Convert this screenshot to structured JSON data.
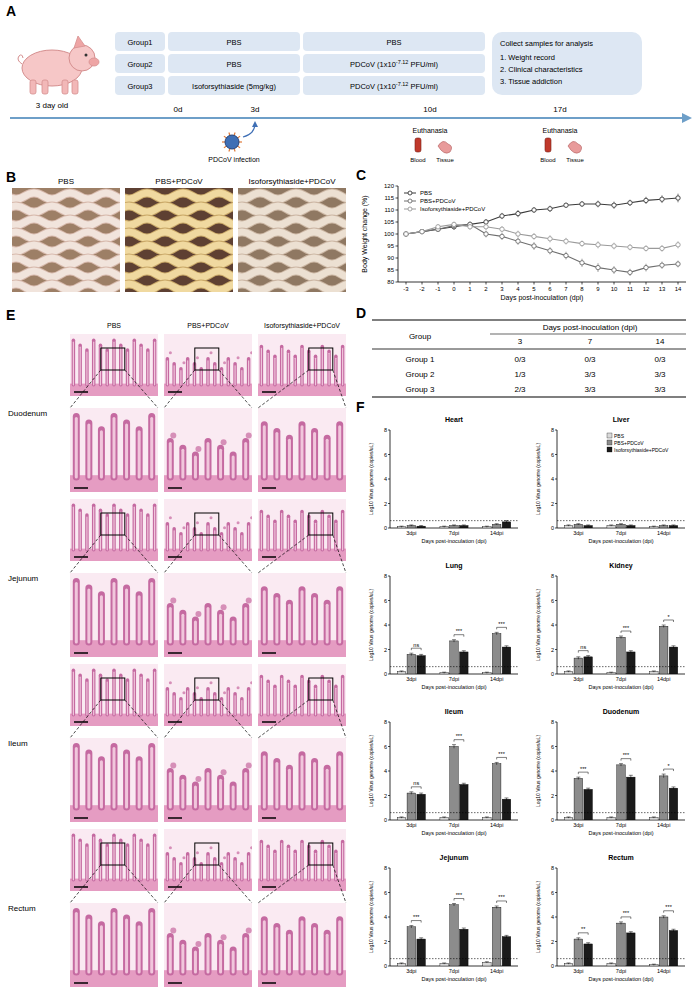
{
  "panel_labels": [
    "A",
    "B",
    "C",
    "D",
    "E",
    "F"
  ],
  "panel_a": {
    "subject": "3 day old",
    "groups": [
      {
        "group": "Group1",
        "pretreatment": "PBS",
        "challenge": {
          "base": "PBS"
        }
      },
      {
        "group": "Group2",
        "pretreatment": "PBS",
        "challenge": {
          "base": "PDCoV (1x10",
          "exponent": "-7.12",
          "unit": " PFU/ml)"
        }
      },
      {
        "group": "Group3",
        "pretreatment": "Isoforsythiaside (5mg/kg)",
        "challenge": {
          "base": "PDCoV (1x10",
          "exponent": "-7.12",
          "unit": " PFU/ml)"
        }
      }
    ],
    "collect": {
      "title": "Collect samples for analysis",
      "items": [
        "1. Weight record",
        "2. Clinical characteristics",
        "3. Tissue addiction"
      ]
    },
    "timeline": [
      "0d",
      "3d",
      "10d",
      "17d"
    ],
    "infection_label": "PDCoV infection",
    "sampling": {
      "label": "Euthanasia",
      "items": [
        "Blood",
        "Tissue"
      ]
    }
  },
  "panel_b": {
    "images": [
      "PBS",
      "PBS+PDCoV",
      "Isoforsythiaside+PDCoV"
    ]
  },
  "panel_d": {
    "header": "Days post-inoculation (dpi)",
    "columns": [
      "Group",
      "3",
      "7",
      "14"
    ],
    "rows": [
      [
        "Group 1",
        "0/3",
        "0/3",
        "0/3"
      ],
      [
        "Group 2",
        "1/3",
        "3/3",
        "3/3"
      ],
      [
        "Group 3",
        "2/3",
        "3/3",
        "3/3"
      ]
    ]
  },
  "panel_e": {
    "columns": [
      "PBS",
      "PBS+PDCoV",
      "Isoforsythiaside+PDCoV"
    ],
    "rows": [
      "Duodenum",
      "Jejunum",
      "Ileum",
      "Rectum"
    ]
  },
  "chart_data": [
    {
      "type": "line",
      "x_label": "Days post-inoculation (dpi)",
      "y_label": "Body Weight change (%)",
      "x": [
        -3,
        -2,
        -1,
        0,
        1,
        2,
        3,
        4,
        5,
        6,
        7,
        8,
        9,
        10,
        11,
        12,
        13,
        14
      ],
      "xlim": [
        -3.5,
        14.5
      ],
      "xticks": [
        -3,
        -2,
        -1,
        0,
        1,
        2,
        3,
        4,
        5,
        6,
        7,
        8,
        9,
        10,
        11,
        12,
        13,
        14
      ],
      "ylim": [
        80,
        120
      ],
      "yticks": [
        80,
        85,
        90,
        95,
        100,
        105,
        110,
        115,
        120
      ],
      "legend": "top-left",
      "series": [
        {
          "name": "PBS",
          "color": "#3a3a3a",
          "marker": "circle",
          "line_style": "solid",
          "values": [
            100,
            101,
            102,
            103,
            104,
            105,
            107.5,
            108.5,
            110,
            110.5,
            112,
            112.5,
            112.5,
            112,
            113,
            114,
            114.5,
            115
          ],
          "errors": [
            0.8,
            1,
            1,
            1.2,
            1,
            1.2,
            1.3,
            1.5,
            1.2,
            1.3,
            1,
            1.2,
            1.4,
            1.5,
            1.3,
            1.5,
            1.6,
            1.8
          ]
        },
        {
          "name": "PBS+PDCoV",
          "color": "#6e6e6e",
          "marker": "circle",
          "line_style": "solid",
          "values": [
            100,
            101,
            102,
            103.5,
            104,
            100,
            99,
            97,
            95,
            93,
            91,
            88,
            86,
            85,
            84,
            86,
            87,
            87.5
          ],
          "errors": [
            0.8,
            1,
            1.1,
            1.2,
            1.2,
            1.4,
            1.5,
            1.5,
            1.6,
            1.5,
            1.6,
            1.7,
            1.8,
            1.6,
            1.5,
            1.6,
            1.5,
            1.4
          ]
        },
        {
          "name": "Isoforsythiaside+PDCoV",
          "color": "#9a9a9a",
          "marker": "circle",
          "line_style": "solid",
          "values": [
            100,
            101,
            103,
            104,
            103,
            103,
            102,
            100,
            99,
            98,
            97,
            96,
            95.5,
            95,
            94.5,
            94,
            94,
            95.5
          ],
          "errors": [
            0.8,
            1,
            1,
            1.1,
            1.2,
            1.3,
            1.3,
            1.4,
            1.4,
            1.5,
            1.4,
            1.3,
            1.5,
            1.4,
            1.3,
            1.3,
            1.4,
            1.5
          ]
        }
      ]
    },
    {
      "type": "bar",
      "title": "Heart",
      "categories": [
        "3dpi",
        "7dpi",
        "14dpi"
      ],
      "x_label": "Days post-inoculation (dpi)",
      "y_label": "Log10 Virus genome (copies/uL)",
      "ylim": [
        0,
        8
      ],
      "yticks": [
        0,
        2,
        4,
        6,
        8
      ],
      "detection_limit": 0.6,
      "series": [
        {
          "color": "#d9d9d9",
          "values": [
            0.1,
            0.1,
            0.1
          ],
          "errors": [
            0.05,
            0.05,
            0.05
          ]
        },
        {
          "color": "#8c8c8c",
          "values": [
            0.2,
            0.2,
            0.3
          ],
          "errors": [
            0.05,
            0.05,
            0.05
          ]
        },
        {
          "color": "#1a1a1a",
          "values": [
            0.15,
            0.2,
            0.5
          ],
          "errors": [
            0.05,
            0.05,
            0.1
          ]
        }
      ]
    },
    {
      "type": "bar",
      "title": "Liver",
      "categories": [
        "3dpi",
        "7dpi",
        "14dpi"
      ],
      "x_label": "Days post-inoculation (dpi)",
      "y_label": "Log10 Virus genome (copies/uL)",
      "ylim": [
        0,
        8
      ],
      "yticks": [
        0,
        2,
        4,
        6,
        8
      ],
      "detection_limit": 0.6,
      "legend": "top-right",
      "series": [
        {
          "name": "PBS",
          "color": "#d9d9d9",
          "values": [
            0.2,
            0.2,
            0.1
          ],
          "errors": [
            0.05,
            0.05,
            0.05
          ]
        },
        {
          "name": "PBS+PDCoV",
          "color": "#8c8c8c",
          "values": [
            0.3,
            0.3,
            0.2
          ],
          "errors": [
            0.05,
            0.05,
            0.05
          ]
        },
        {
          "name": "Isoforsythiaside+PDCoV",
          "color": "#1a1a1a",
          "values": [
            0.2,
            0.2,
            0.2
          ],
          "errors": [
            0.05,
            0.05,
            0.05
          ]
        }
      ]
    },
    {
      "type": "bar",
      "title": "Lung",
      "categories": [
        "3dpi",
        "7dpi",
        "14dpi"
      ],
      "x_label": "Days post-inoculation (dpi)",
      "y_label": "Log10 Virus genome (copies/uL)",
      "ylim": [
        0,
        8
      ],
      "yticks": [
        0,
        2,
        4,
        6,
        8
      ],
      "detection_limit": 0.6,
      "annotations": [
        "ns",
        "***",
        "***"
      ],
      "series": [
        {
          "color": "#d9d9d9",
          "values": [
            0.2,
            0.1,
            0.1
          ],
          "errors": [
            0.05,
            0.05,
            0.05
          ]
        },
        {
          "color": "#8c8c8c",
          "values": [
            1.6,
            2.7,
            3.3
          ],
          "errors": [
            0.1,
            0.1,
            0.1
          ]
        },
        {
          "color": "#1a1a1a",
          "values": [
            1.5,
            1.8,
            2.2
          ],
          "errors": [
            0.1,
            0.1,
            0.1
          ]
        }
      ]
    },
    {
      "type": "bar",
      "title": "Kidney",
      "categories": [
        "3dpi",
        "7dpi",
        "14dpi"
      ],
      "x_label": "Days post-inoculation (dpi)",
      "y_label": "Log10 Virus genome (copies/uL)",
      "ylim": [
        0,
        8
      ],
      "yticks": [
        0,
        2,
        4,
        6,
        8
      ],
      "detection_limit": 0.6,
      "annotations": [
        "ns",
        "***",
        "*"
      ],
      "series": [
        {
          "color": "#d9d9d9",
          "values": [
            0.2,
            0.1,
            0.2
          ],
          "errors": [
            0.05,
            0.05,
            0.05
          ]
        },
        {
          "color": "#8c8c8c",
          "values": [
            1.3,
            3.0,
            3.9
          ],
          "errors": [
            0.1,
            0.1,
            0.1
          ]
        },
        {
          "color": "#1a1a1a",
          "values": [
            1.4,
            1.8,
            2.2
          ],
          "errors": [
            0.1,
            0.1,
            0.1
          ]
        }
      ]
    },
    {
      "type": "bar",
      "title": "Ileum",
      "categories": [
        "3dpi",
        "7dpi",
        "14dpi"
      ],
      "x_label": "Days post-inoculation (dpi)",
      "y_label": "Log10 Virus genome (copies/uL)",
      "ylim": [
        0,
        8
      ],
      "yticks": [
        0,
        2,
        4,
        6,
        8
      ],
      "detection_limit": 0.6,
      "annotations": [
        "ns",
        "***",
        "***"
      ],
      "series": [
        {
          "color": "#d9d9d9",
          "values": [
            0.2,
            0.2,
            0.2
          ],
          "errors": [
            0.05,
            0.05,
            0.05
          ]
        },
        {
          "color": "#8c8c8c",
          "values": [
            2.2,
            6.0,
            4.6
          ],
          "errors": [
            0.1,
            0.15,
            0.1
          ]
        },
        {
          "color": "#1a1a1a",
          "values": [
            2.1,
            2.9,
            1.7
          ],
          "errors": [
            0.1,
            0.1,
            0.1
          ]
        }
      ]
    },
    {
      "type": "bar",
      "title": "Duodenum",
      "categories": [
        "3dpi",
        "7dpi",
        "14dpi"
      ],
      "x_label": "Days post-inoculation (dpi)",
      "y_label": "Log10 Virus genome (copies/uL)",
      "ylim": [
        0,
        8
      ],
      "yticks": [
        0,
        2,
        4,
        6,
        8
      ],
      "detection_limit": 0.6,
      "annotations": [
        "***",
        "***",
        "*"
      ],
      "series": [
        {
          "color": "#d9d9d9",
          "values": [
            0.2,
            0.2,
            0.2
          ],
          "errors": [
            0.05,
            0.05,
            0.05
          ]
        },
        {
          "color": "#8c8c8c",
          "values": [
            3.4,
            4.5,
            3.6
          ],
          "errors": [
            0.1,
            0.1,
            0.15
          ]
        },
        {
          "color": "#1a1a1a",
          "values": [
            2.5,
            3.5,
            2.6
          ],
          "errors": [
            0.1,
            0.15,
            0.1
          ]
        }
      ]
    },
    {
      "type": "bar",
      "title": "Jejunum",
      "categories": [
        "3dpi",
        "7dpi",
        "14dpi"
      ],
      "x_label": "Days post-inoculation (dpi)",
      "y_label": "Log10 Virus genome (copies/uL)",
      "ylim": [
        0,
        8
      ],
      "yticks": [
        0,
        2,
        4,
        6,
        8
      ],
      "detection_limit": 0.6,
      "annotations": [
        "***",
        "***",
        "***"
      ],
      "series": [
        {
          "color": "#d9d9d9",
          "values": [
            0.2,
            0.2,
            0.3
          ],
          "errors": [
            0.05,
            0.05,
            0.05
          ]
        },
        {
          "color": "#8c8c8c",
          "values": [
            3.2,
            5.0,
            4.8
          ],
          "errors": [
            0.1,
            0.1,
            0.1
          ]
        },
        {
          "color": "#1a1a1a",
          "values": [
            2.2,
            3.0,
            2.4
          ],
          "errors": [
            0.1,
            0.1,
            0.1
          ]
        }
      ]
    },
    {
      "type": "bar",
      "title": "Rectum",
      "categories": [
        "3dpi",
        "7dpi",
        "14dpi"
      ],
      "x_label": "Days post-inoculation (dpi)",
      "y_label": "Log10 Virus genome (copies/uL)",
      "ylim": [
        0,
        8
      ],
      "yticks": [
        0,
        2,
        4,
        6,
        8
      ],
      "detection_limit": 0.6,
      "annotations": [
        "**",
        "***",
        "***"
      ],
      "series": [
        {
          "color": "#d9d9d9",
          "values": [
            0.2,
            0.2,
            0.1
          ],
          "errors": [
            0.05,
            0.05,
            0.05
          ]
        },
        {
          "color": "#8c8c8c",
          "values": [
            2.2,
            3.5,
            4.0
          ],
          "errors": [
            0.1,
            0.1,
            0.1
          ]
        },
        {
          "color": "#1a1a1a",
          "values": [
            1.8,
            2.7,
            2.9
          ],
          "errors": [
            0.1,
            0.1,
            0.1
          ]
        }
      ]
    }
  ]
}
